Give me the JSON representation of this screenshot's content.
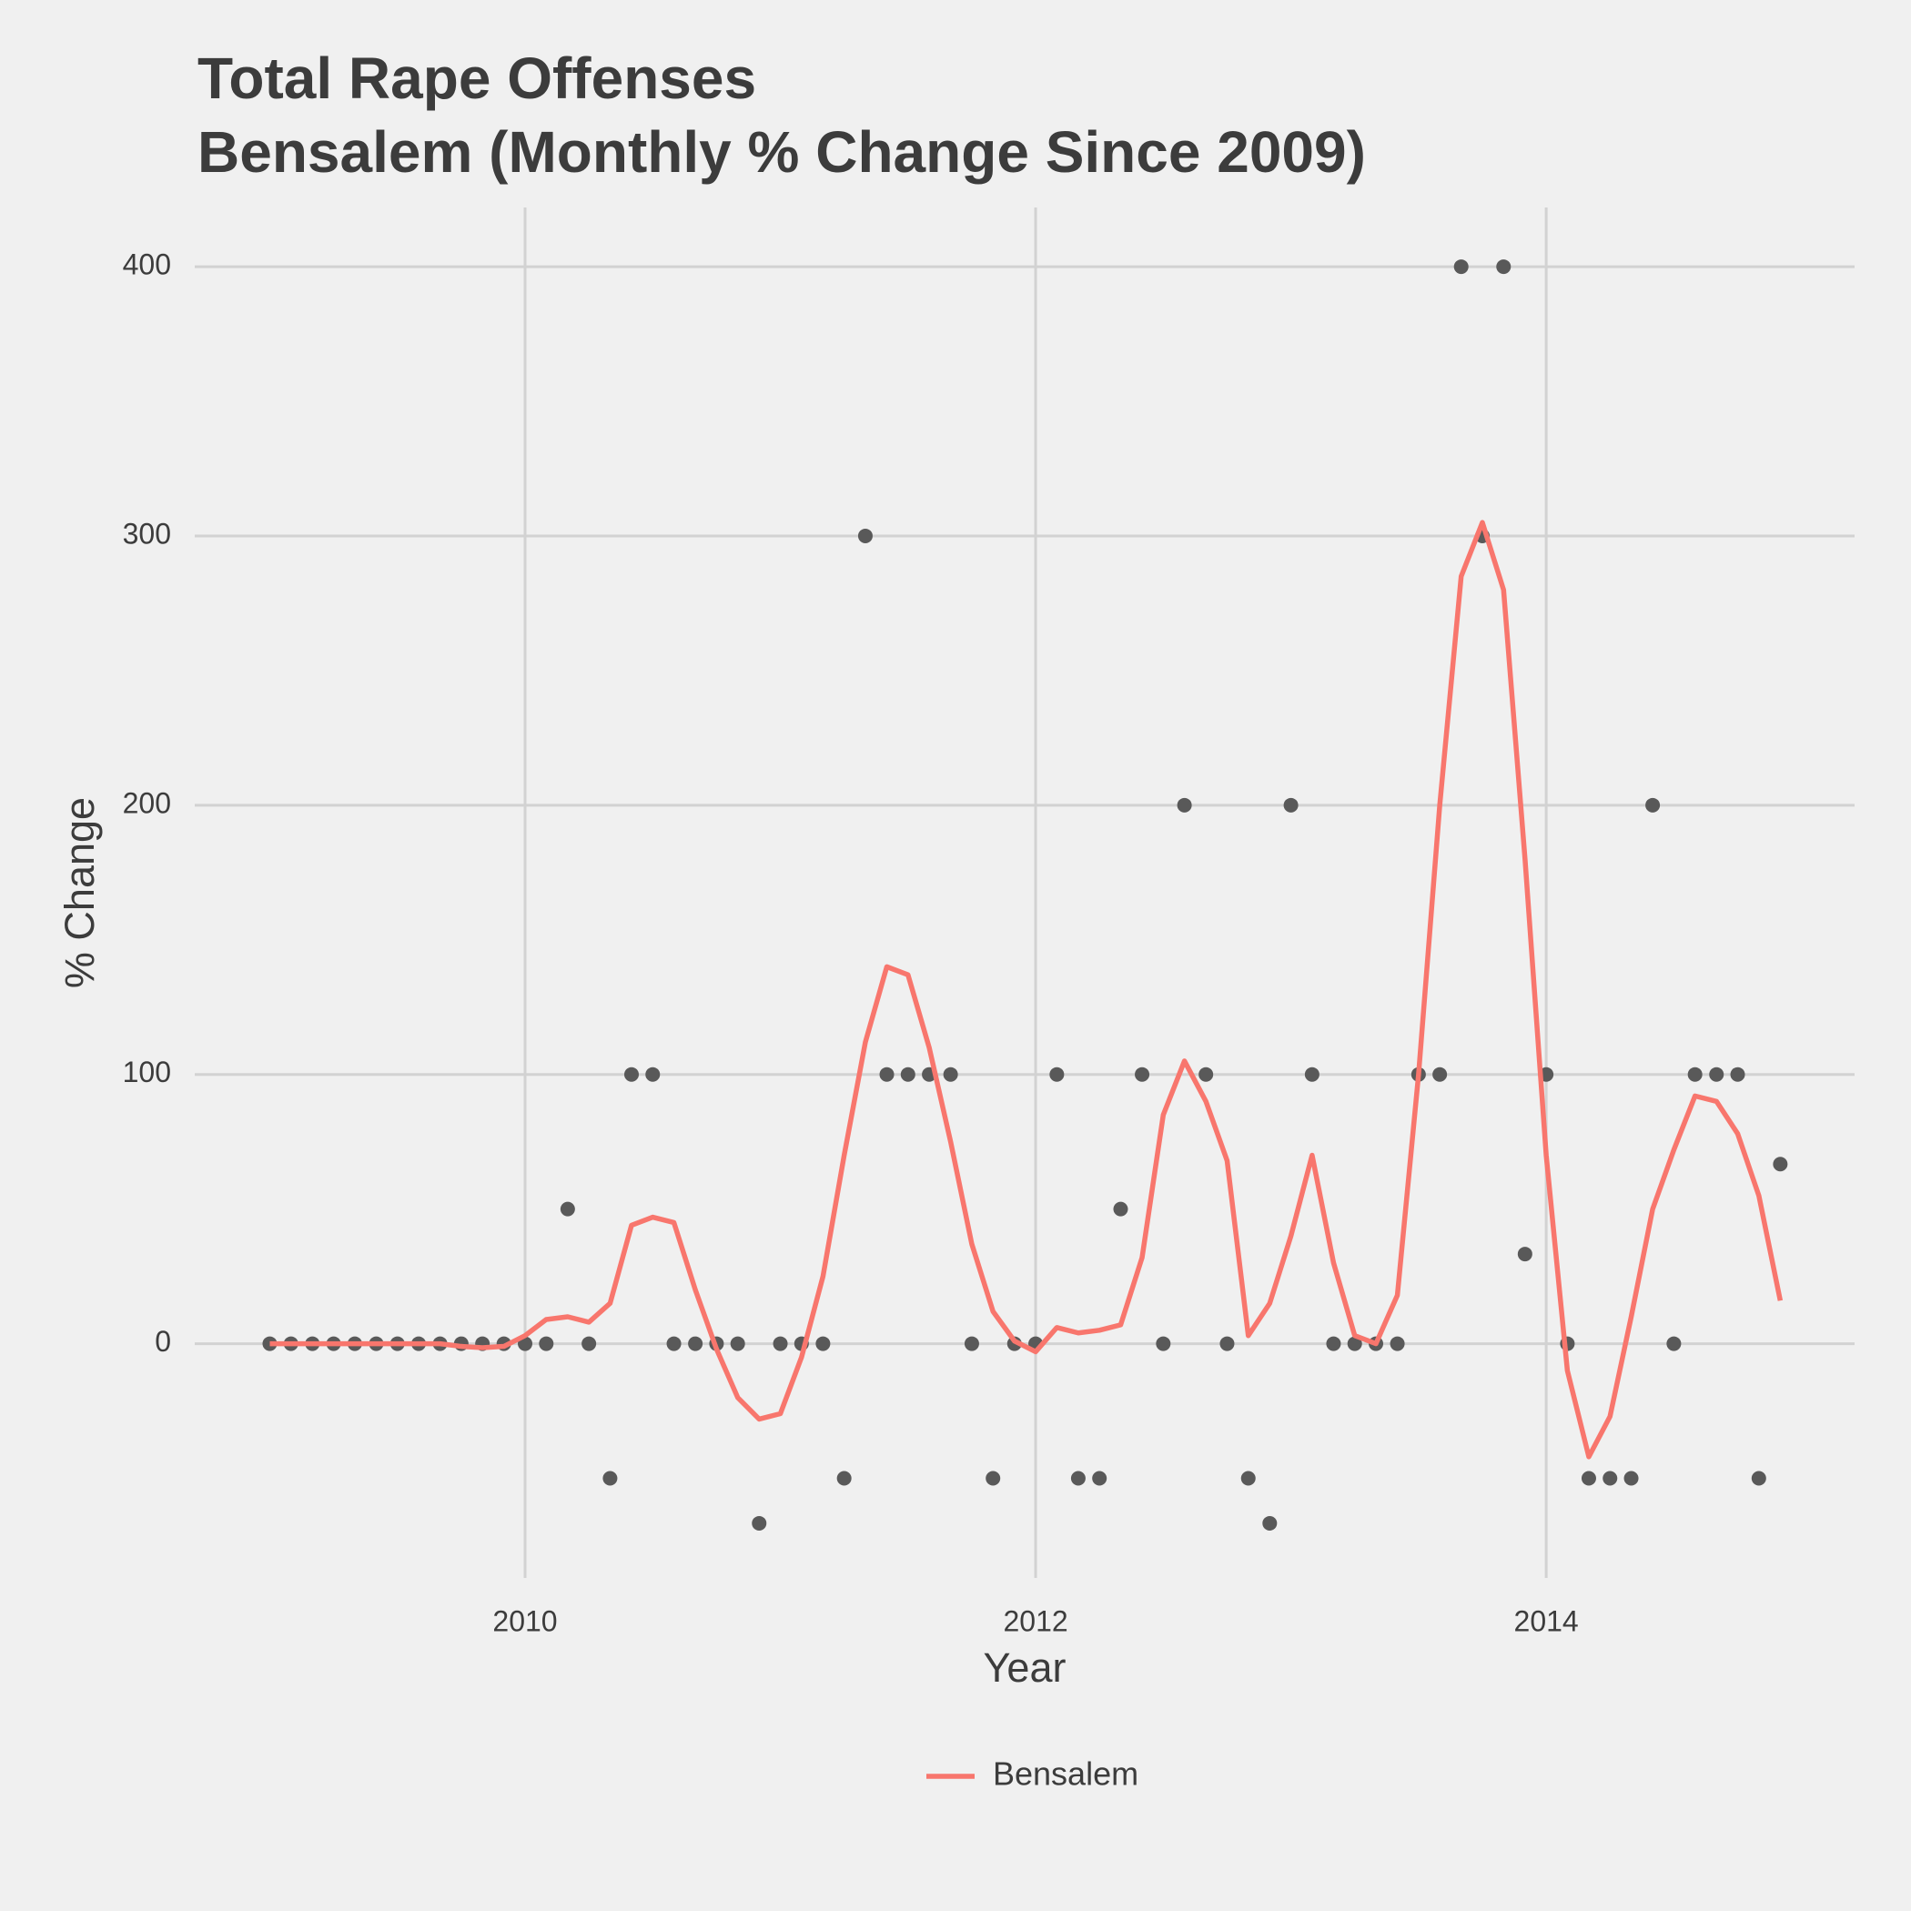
{
  "chart_data": {
    "type": "line",
    "title": "Total Rape Offenses",
    "subtitle": "Bensalem (Monthly % Change Since 2009)",
    "x_label": "Year",
    "y_label": "% Change",
    "x": [
      2009,
      2009.083,
      2009.167,
      2009.25,
      2009.333,
      2009.417,
      2009.5,
      2009.583,
      2009.667,
      2009.75,
      2009.833,
      2009.917,
      2010,
      2010.083,
      2010.167,
      2010.25,
      2010.333,
      2010.417,
      2010.5,
      2010.583,
      2010.667,
      2010.75,
      2010.833,
      2010.917,
      2011,
      2011.083,
      2011.167,
      2011.25,
      2011.333,
      2011.417,
      2011.5,
      2011.583,
      2011.667,
      2011.75,
      2011.833,
      2011.917,
      2012,
      2012.083,
      2012.167,
      2012.25,
      2012.333,
      2012.417,
      2012.5,
      2012.583,
      2012.667,
      2012.75,
      2012.833,
      2012.917,
      2013,
      2013.083,
      2013.167,
      2013.25,
      2013.333,
      2013.417,
      2013.5,
      2013.583,
      2013.667,
      2013.75,
      2013.833,
      2013.917,
      2014,
      2014.083,
      2014.167,
      2014.25,
      2014.333,
      2014.417,
      2014.5,
      2014.583,
      2014.667,
      2014.75,
      2014.833,
      2014.917
    ],
    "series": [
      {
        "name": "Bensalem",
        "color": "#f8766d",
        "values": [
          0,
          0,
          0,
          0,
          0,
          0,
          0,
          0,
          0,
          -1,
          -1.5,
          -1,
          3,
          9,
          10,
          8,
          15,
          44,
          47,
          45,
          20,
          -2,
          -20,
          -28,
          -26,
          -5,
          25,
          70,
          112,
          140,
          137,
          110,
          75,
          37,
          12,
          1,
          -3,
          6,
          4,
          5,
          7,
          32,
          85,
          105,
          90,
          68,
          3,
          15,
          40,
          70,
          30,
          3,
          0,
          18,
          100,
          200,
          285,
          305,
          280,
          180,
          70,
          -10,
          -42,
          -27,
          10,
          50,
          72,
          92,
          90,
          78,
          55,
          16
        ]
      }
    ],
    "scatter": {
      "color": "#595959",
      "values": [
        0,
        0,
        0,
        0,
        0,
        0,
        0,
        0,
        0,
        0,
        0,
        0,
        0,
        0,
        50,
        0,
        -50,
        100,
        100,
        0,
        0,
        0,
        0,
        -66.7,
        0,
        0,
        0,
        -50,
        300,
        100,
        100,
        100,
        100,
        0,
        -50,
        0,
        0,
        100,
        -50,
        -50,
        50,
        100,
        0,
        200,
        100,
        0,
        -50,
        -66.7,
        200,
        100,
        0,
        0,
        0,
        0,
        100,
        100,
        400,
        300,
        400,
        33.3,
        100,
        0,
        -50,
        -50,
        -50,
        200,
        0,
        100,
        100,
        100,
        -50,
        66.7
      ]
    },
    "xlim": [
      2008.706,
      2015.208
    ],
    "ylim": [
      -87,
      422
    ],
    "xticks": [
      2010,
      2012,
      2014
    ],
    "yticks": [
      0,
      100,
      200,
      300,
      400
    ],
    "grid": true,
    "legend": "bottom"
  }
}
